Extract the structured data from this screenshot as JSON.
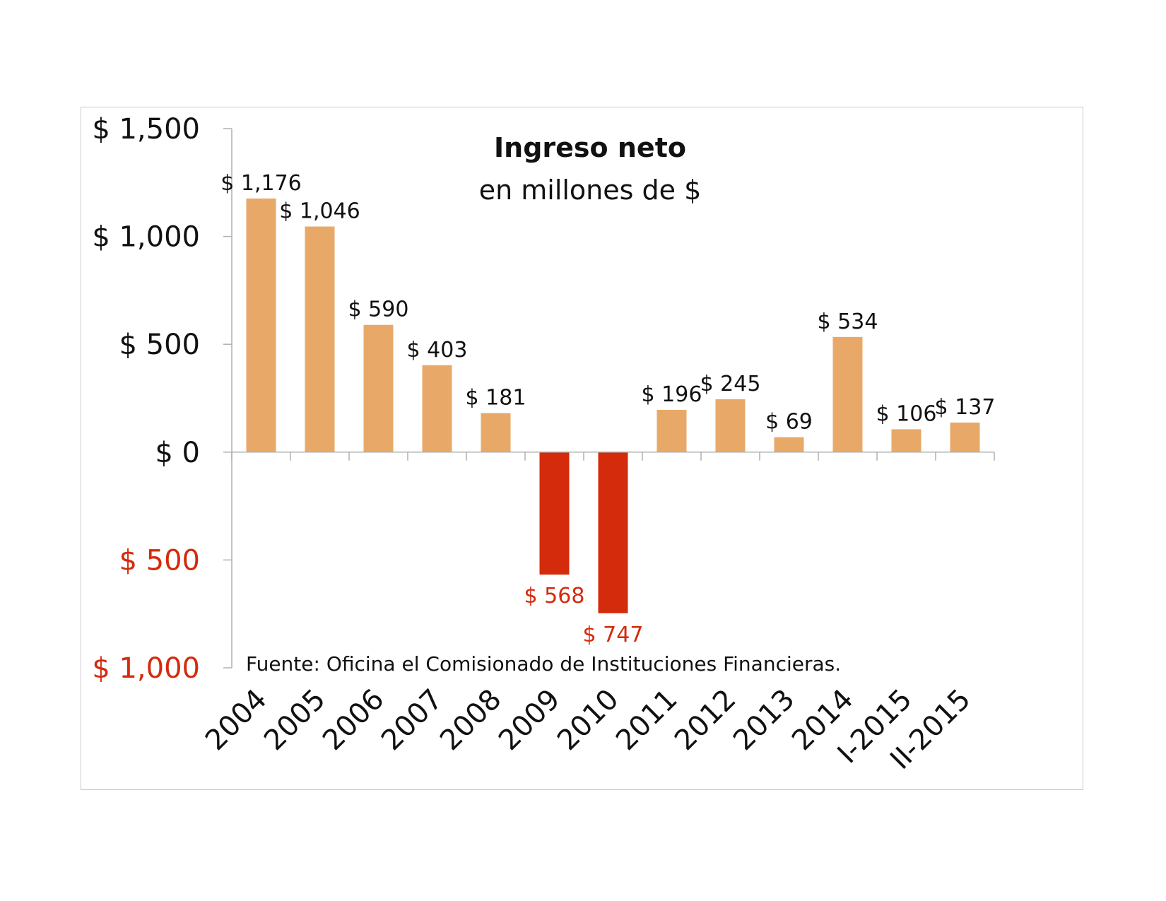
{
  "chart_data": {
    "type": "bar",
    "title": "Ingreso neto",
    "subtitle": "en millones de $",
    "source_note": "Fuente: Oficina el Comisionado de Instituciones Financieras.",
    "categories": [
      "2004",
      "2005",
      "2006",
      "2007",
      "2008",
      "2009",
      "2010",
      "2011",
      "2012",
      "2013",
      "2014",
      "I-2015",
      "II-2015"
    ],
    "values": [
      1176,
      1046,
      590,
      403,
      181,
      -568,
      -747,
      196,
      245,
      69,
      534,
      106,
      137
    ],
    "data_labels": [
      "$ 1,176",
      "$ 1,046",
      "$ 590",
      "$ 403",
      "$ 181",
      "$ 568",
      "$ 747",
      "$ 196",
      "$ 245",
      "$ 69",
      "$ 534",
      "$ 106",
      "$ 137"
    ],
    "y_ticks": [
      {
        "value": 1500,
        "label": "$ 1,500"
      },
      {
        "value": 1000,
        "label": "$ 1,000"
      },
      {
        "value": 500,
        "label": "$ 500"
      },
      {
        "value": 0,
        "label": "$ 0"
      },
      {
        "value": -500,
        "label": "$ 500"
      },
      {
        "value": -1000,
        "label": "$ 1,000"
      }
    ],
    "ylim": [
      -1000,
      1500
    ],
    "xlabel": "",
    "ylabel": "",
    "grid": false,
    "colors": {
      "positive_bar": "#e8a968",
      "negative_bar": "#d42b0c",
      "negative_text": "#d42b0c",
      "text": "#111111",
      "axis": "#b0b0b0"
    }
  }
}
